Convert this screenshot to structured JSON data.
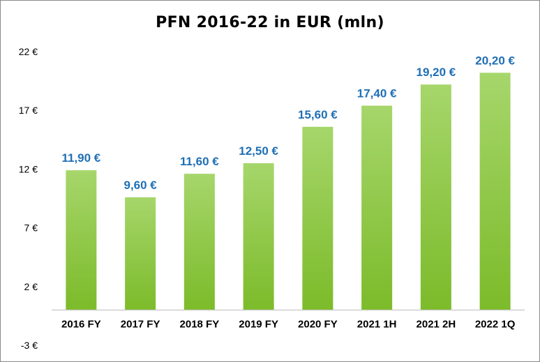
{
  "chart_data": {
    "type": "bar",
    "title": "PFN 2016-22 in EUR (mln)",
    "categories": [
      "2016 FY",
      "2017 FY",
      "2018 FY",
      "2019 FY",
      "2020 FY",
      "2021 1H",
      "2021 2H",
      "2022 1Q"
    ],
    "values": [
      11.9,
      9.6,
      11.6,
      12.5,
      15.6,
      17.4,
      19.2,
      20.2
    ],
    "data_labels": [
      "11,90 €",
      "9,60 €",
      "11,60 €",
      "12,50 €",
      "15,60 €",
      "17,40 €",
      "19,20 €",
      "20,20 €"
    ],
    "y_ticks": [
      22,
      17,
      12,
      7,
      2,
      -3
    ],
    "y_tick_labels": [
      "22 €",
      "17 €",
      "12 €",
      "7 €",
      "2 €",
      "-3 €"
    ],
    "ylim": [
      -3,
      22
    ],
    "baseline": 0,
    "xlabel": "",
    "ylabel": "",
    "grid": false,
    "legend": "none",
    "colors": {
      "bar_top": "#a6d66b",
      "bar_bottom": "#7cbb2a",
      "data_label": "#1f6fb5",
      "axis": "#c8c8c8"
    }
  }
}
